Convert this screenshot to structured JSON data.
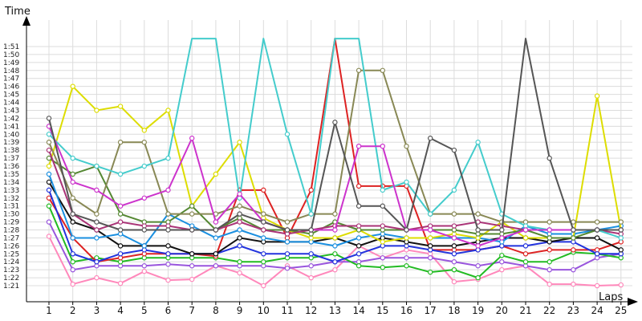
{
  "chart_data": {
    "type": "line",
    "xlabel": "Laps",
    "ylabel": "Time",
    "grid": true,
    "legend": "none",
    "x": [
      1,
      2,
      3,
      4,
      5,
      6,
      7,
      8,
      9,
      10,
      11,
      12,
      13,
      14,
      15,
      16,
      17,
      18,
      19,
      20,
      21,
      22,
      23,
      24,
      25
    ],
    "y_tick_labels": [
      "1:21",
      "1:22",
      "1:23",
      "1:24",
      "1:25",
      "1:26",
      "1:27",
      "1:28",
      "1:29",
      "1:30",
      "1:31",
      "1:32",
      "1:33",
      "1:34",
      "1:35",
      "1:36",
      "1:37",
      "1:38",
      "1:39",
      "1:40",
      "1:41",
      "1:42",
      "1:43",
      "1:44",
      "1:45",
      "1:46",
      "1:47",
      "1:48",
      "1:49",
      "1:50",
      "1:51"
    ],
    "ylim": [
      80.5,
      112
    ],
    "series": [
      {
        "color": "#ff88bb",
        "values": [
          87.2,
          81.2,
          82.0,
          81.3,
          82.8,
          81.7,
          81.8,
          83.5,
          82.6,
          81.0,
          83.5,
          82.0,
          83.0,
          86.0,
          84.5,
          85.5,
          85.0,
          81.5,
          81.8,
          83.0,
          83.5,
          81.2,
          81.2,
          81.0,
          81.1
        ]
      },
      {
        "color": "#9955dd",
        "values": [
          89.0,
          83.0,
          83.5,
          83.5,
          83.5,
          83.7,
          83.5,
          83.5,
          83.5,
          83.5,
          83.2,
          83.5,
          84.0,
          84.0,
          84.5,
          84.5,
          84.5,
          84.0,
          83.5,
          84.0,
          83.5,
          83.0,
          83.0,
          84.5,
          85.0
        ]
      },
      {
        "color": "#22bb22",
        "values": [
          91.0,
          84.0,
          84.5,
          84.0,
          84.5,
          84.5,
          84.5,
          84.5,
          84.0,
          84.0,
          84.5,
          84.5,
          85.0,
          83.5,
          83.3,
          83.5,
          82.7,
          83.0,
          82.0,
          84.8,
          84.0,
          84.0,
          85.2,
          85.0,
          84.5
        ]
      },
      {
        "color": "#dd2222",
        "values": [
          92.0,
          87.0,
          84.0,
          84.5,
          85.0,
          85.0,
          85.0,
          84.7,
          93.0,
          93.0,
          87.0,
          93.0,
          112.0,
          93.5,
          93.5,
          93.5,
          85.5,
          85.5,
          85.5,
          86.0,
          85.0,
          85.5,
          85.5,
          85.5,
          86.5
        ]
      },
      {
        "color": "#2233dd",
        "values": [
          93.0,
          85.0,
          84.0,
          85.0,
          85.5,
          85.0,
          85.0,
          85.0,
          86.0,
          85.0,
          85.0,
          85.0,
          84.0,
          85.0,
          86.0,
          86.0,
          85.5,
          85.0,
          85.5,
          86.0,
          86.0,
          86.5,
          86.5,
          85.0,
          85.0
        ]
      },
      {
        "color": "#111111",
        "values": [
          94.0,
          89.0,
          88.0,
          86.0,
          86.0,
          86.0,
          85.0,
          85.0,
          87.0,
          86.5,
          86.5,
          86.5,
          87.0,
          86.0,
          87.0,
          86.5,
          86.0,
          86.0,
          86.5,
          87.0,
          87.0,
          86.5,
          87.0,
          87.0,
          85.5
        ]
      },
      {
        "color": "#1a8fe0",
        "values": [
          95.0,
          87.0,
          87.0,
          87.5,
          86.0,
          90.0,
          88.5,
          87.0,
          88.0,
          87.0,
          86.5,
          86.5,
          86.0,
          87.0,
          87.5,
          87.0,
          87.0,
          87.0,
          87.0,
          86.5,
          88.5,
          87.5,
          87.5,
          88.0,
          88.5
        ]
      },
      {
        "color": "#dddd00",
        "values": [
          96.0,
          106.0,
          103.0,
          103.5,
          100.5,
          103.0,
          91.0,
          95.0,
          99.0,
          89.5,
          88.0,
          87.0,
          87.0,
          88.0,
          86.5,
          87.0,
          87.0,
          87.5,
          87.0,
          89.0,
          87.0,
          87.0,
          87.0,
          104.8,
          88.0
        ]
      },
      {
        "color": "#558833",
        "values": [
          97.0,
          95.0,
          96.0,
          90.0,
          89.0,
          89.0,
          91.0,
          88.0,
          89.5,
          88.0,
          88.0,
          87.5,
          89.0,
          88.0,
          88.0,
          88.0,
          88.0,
          88.0,
          87.5,
          87.5,
          88.0,
          87.0,
          87.0,
          88.0,
          88.0
        ]
      },
      {
        "color": "#aa3377",
        "values": [
          98.0,
          90.0,
          88.0,
          89.0,
          88.5,
          88.5,
          88.0,
          88.0,
          89.0,
          88.0,
          87.5,
          88.0,
          88.5,
          88.5,
          88.5,
          88.0,
          88.5,
          88.5,
          89.0,
          88.5,
          88.0,
          88.0,
          88.0,
          88.0,
          87.5
        ]
      },
      {
        "color": "#888855",
        "values": [
          99.0,
          92.0,
          90.0,
          99.0,
          99.0,
          90.0,
          90.0,
          90.0,
          91.0,
          90.0,
          89.0,
          90.0,
          90.0,
          108.0,
          108.0,
          98.5,
          90.0,
          90.0,
          90.0,
          89.0,
          89.0,
          89.0,
          89.0,
          89.0,
          89.0
        ]
      },
      {
        "color": "#44cccc",
        "values": [
          100.0,
          97.0,
          96.0,
          95.0,
          96.0,
          97.0,
          112.0,
          112.0,
          92.0,
          112.0,
          100.0,
          90.0,
          112.0,
          112.0,
          93.0,
          94.0,
          90.0,
          93.0,
          99.0,
          90.0,
          88.5,
          88.0,
          88.0,
          88.0,
          87.0
        ]
      },
      {
        "color": "#cc33cc",
        "values": [
          101.0,
          94.0,
          93.0,
          91.0,
          92.0,
          93.0,
          99.5,
          89.0,
          92.5,
          89.0,
          88.0,
          88.0,
          88.0,
          98.5,
          98.5,
          88.0,
          88.0,
          87.0,
          86.0,
          87.0,
          88.0,
          88.0,
          88.0,
          88.0,
          88.0
        ]
      },
      {
        "color": "#555555",
        "values": [
          102.0,
          90.0,
          89.0,
          88.0,
          88.0,
          88.0,
          88.0,
          88.0,
          90.0,
          89.0,
          88.0,
          88.0,
          101.5,
          91.0,
          91.0,
          88.0,
          99.5,
          98.0,
          88.0,
          88.0,
          112.0,
          97.0,
          88.0,
          88.0,
          88.0
        ]
      }
    ]
  }
}
